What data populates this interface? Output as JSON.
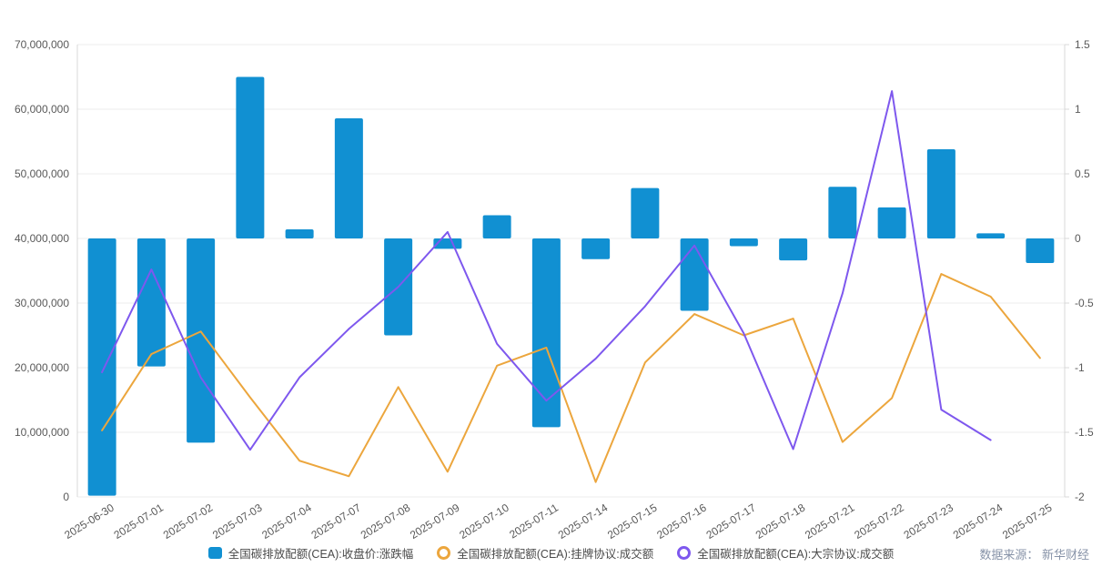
{
  "source_note": "数据来源： 新华财经",
  "colors": {
    "bar_blue": "#1190d2",
    "line_orange": "#eca63d",
    "line_purple": "#7e58ee",
    "grid_line": "#ececec",
    "axis_line": "#d8d8d8",
    "axis_text": "#595959",
    "legend_text": "#4a4a4a",
    "source_text": "#8793a8"
  },
  "chart_data": {
    "type": "combo",
    "categories": [
      "2025-06-30",
      "2025-07-01",
      "2025-07-02",
      "2025-07-03",
      "2025-07-04",
      "2025-07-07",
      "2025-07-08",
      "2025-07-09",
      "2025-07-10",
      "2025-07-11",
      "2025-07-14",
      "2025-07-15",
      "2025-07-16",
      "2025-07-17",
      "2025-07-18",
      "2025-07-21",
      "2025-07-22",
      "2025-07-23",
      "2025-07-24",
      "2025-07-25"
    ],
    "series": [
      {
        "name": "全国碳排放配额(CEA):收盘价:涨跌幅",
        "type": "bar",
        "y_axis": "right",
        "color": "#1190d2",
        "values": [
          -1.99,
          -0.99,
          -1.58,
          1.25,
          0.07,
          0.93,
          -0.75,
          -0.08,
          0.18,
          -1.46,
          -0.16,
          0.39,
          -0.56,
          -0.06,
          -0.17,
          0.4,
          0.24,
          0.69,
          0.04,
          -0.19
        ]
      },
      {
        "name": "全国碳排放配额(CEA):挂牌协议:成交额",
        "type": "line",
        "y_axis": "left",
        "color": "#eca63d",
        "values": [
          10300000,
          22100000,
          25600000,
          15400000,
          5600000,
          3200000,
          17000000,
          3900000,
          20300000,
          23100000,
          2300000,
          20800000,
          28300000,
          25000000,
          27600000,
          8500000,
          15300000,
          34500000,
          31000000,
          21500000
        ]
      },
      {
        "name": "全国碳排放配额(CEA):大宗协议:成交额",
        "type": "line",
        "y_axis": "left",
        "color": "#7e58ee",
        "values": [
          19300000,
          35200000,
          18500000,
          7300000,
          18500000,
          26000000,
          32500000,
          41000000,
          23700000,
          14900000,
          21400000,
          29500000,
          38900000,
          25300000,
          7400000,
          31500000,
          62800000,
          13500000,
          8800000,
          null
        ]
      }
    ],
    "left_axis": {
      "min": 0,
      "max": 70000000,
      "tick_step": 10000000,
      "tick_labels": [
        "0",
        "10,000,000",
        "20,000,000",
        "30,000,000",
        "40,000,000",
        "50,000,000",
        "60,000,000",
        "70,000,000"
      ]
    },
    "right_axis": {
      "min": -2,
      "max": 1.5,
      "tick_step": 0.5,
      "tick_labels": [
        "-2",
        "-1.5",
        "-1",
        "-0.5",
        "0",
        "0.5",
        "1",
        "1.5"
      ]
    },
    "grid": true,
    "legend_position": "bottom"
  }
}
